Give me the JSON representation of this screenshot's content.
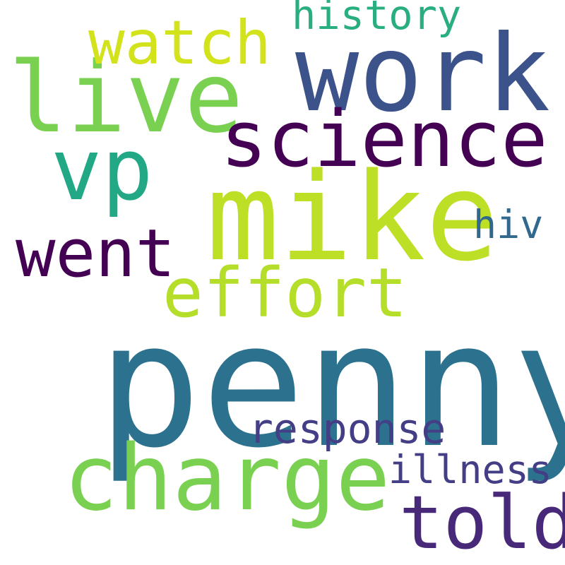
{
  "words": {
    "penny": {
      "text": "penny",
      "color": "#2c728e"
    },
    "mike": {
      "text": "mike",
      "color": "#bddf26"
    },
    "work": {
      "text": "work",
      "color": "#3b528b"
    },
    "live": {
      "text": "live",
      "color": "#7ad151"
    },
    "charge": {
      "text": "charge",
      "color": "#7ad151"
    },
    "science": {
      "text": "science",
      "color": "#440154"
    },
    "vp": {
      "text": "vp",
      "color": "#22a884"
    },
    "watch": {
      "text": "watch",
      "color": "#d2e21b"
    },
    "went": {
      "text": "went",
      "color": "#440154"
    },
    "effort": {
      "text": "effort",
      "color": "#b5de2b"
    },
    "told": {
      "text": "told",
      "color": "#482878"
    },
    "response": {
      "text": "response",
      "color": "#433e85"
    },
    "illness": {
      "text": "illness",
      "color": "#433e85"
    },
    "history": {
      "text": "history",
      "color": "#29af7f"
    },
    "hiv": {
      "text": "hiv",
      "color": "#31688e"
    }
  }
}
